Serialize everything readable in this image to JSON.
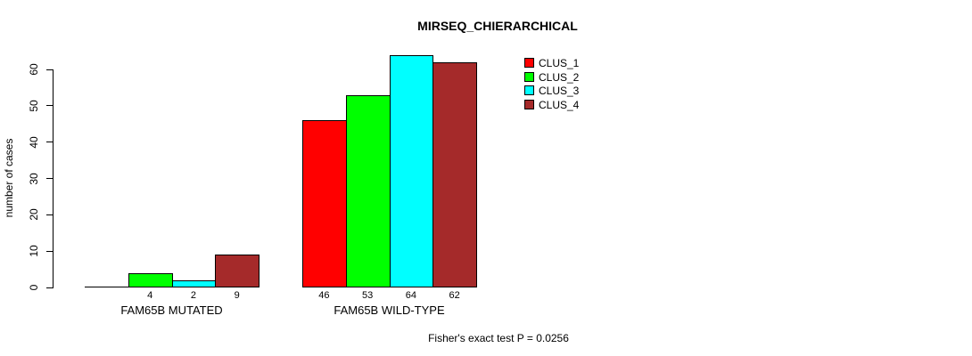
{
  "chart_data": {
    "type": "bar",
    "title": "MIRSEQ_CHIERARCHICAL",
    "ylabel": "number of cases",
    "xlabel": "",
    "ylim": [
      0,
      60
    ],
    "yticks": [
      0,
      10,
      20,
      30,
      40,
      50,
      60
    ],
    "grid": false,
    "legend_position": "top-right",
    "series": [
      {
        "name": "CLUS_1",
        "color": "#ff0000"
      },
      {
        "name": "CLUS_2",
        "color": "#00ff00"
      },
      {
        "name": "CLUS_3",
        "color": "#00ffff"
      },
      {
        "name": "CLUS_4",
        "color": "#a52a2a"
      }
    ],
    "groups": [
      {
        "label": "FAM65B MUTATED",
        "values": [
          0,
          4,
          2,
          9
        ]
      },
      {
        "label": "FAM65B WILD-TYPE",
        "values": [
          46,
          53,
          64,
          62
        ]
      }
    ],
    "bar_labels": [
      [
        "",
        "4",
        "2",
        "9"
      ],
      [
        "46",
        "53",
        "64",
        "62"
      ]
    ],
    "annotation": "Fisher's exact test P = 0.0256"
  }
}
